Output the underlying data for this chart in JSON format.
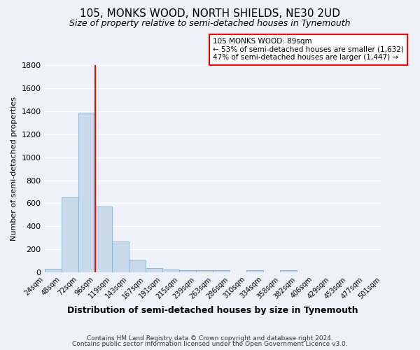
{
  "title": "105, MONKS WOOD, NORTH SHIELDS, NE30 2UD",
  "subtitle": "Size of property relative to semi-detached houses in Tynemouth",
  "xlabel": "Distribution of semi-detached houses by size in Tynemouth",
  "ylabel": "Number of semi-detached properties",
  "bar_values": [
    30,
    650,
    1390,
    570,
    270,
    100,
    35,
    25,
    15,
    15,
    15,
    0,
    15,
    0,
    20,
    0,
    0,
    0,
    0,
    0
  ],
  "bar_labels": [
    "24sqm",
    "48sqm",
    "72sqm",
    "96sqm",
    "119sqm",
    "143sqm",
    "167sqm",
    "191sqm",
    "215sqm",
    "239sqm",
    "263sqm",
    "286sqm",
    "310sqm",
    "334sqm",
    "358sqm",
    "382sqm",
    "406sqm",
    "429sqm",
    "453sqm",
    "477sqm",
    "501sqm"
  ],
  "bar_color": "#c9d9ec",
  "bar_edge_color": "#8ab0d0",
  "ylim": [
    0,
    1800
  ],
  "yticks": [
    0,
    200,
    400,
    600,
    800,
    1000,
    1200,
    1400,
    1600,
    1800
  ],
  "red_line_x": 3.0,
  "annotation_title": "105 MONKS WOOD: 89sqm",
  "annotation_line1": "← 53% of semi-detached houses are smaller (1,632)",
  "annotation_line2": "47% of semi-detached houses are larger (1,447) →",
  "footer_line1": "Contains HM Land Registry data © Crown copyright and database right 2024.",
  "footer_line2": "Contains public sector information licensed under the Open Government Licence v3.0.",
  "background_color": "#eef2f8",
  "grid_color": "#ffffff"
}
